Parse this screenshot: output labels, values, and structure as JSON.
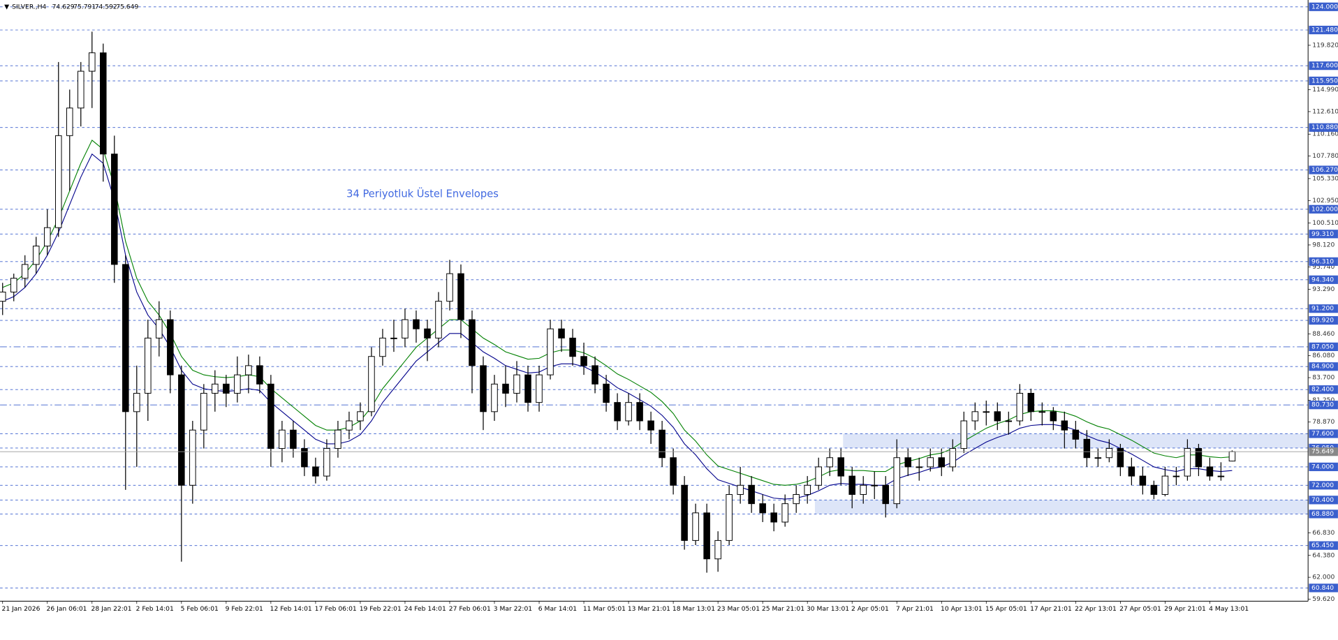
{
  "chart_data": {
    "type": "candlestick",
    "symbol": "SILVER.,H4",
    "annotation": "34 Periyotluk Üstel Envelopes",
    "categories": [
      "21 Jan 2026",
      null,
      null,
      null,
      "26 Jan 06:01",
      null,
      null,
      null,
      "28 Jan 22:01",
      null,
      null,
      null,
      "2 Feb 14:01",
      null,
      null,
      null,
      "5 Feb 06:01",
      null,
      null,
      null,
      "9 Feb 22:01",
      null,
      null,
      null,
      "12 Feb 14:01",
      null,
      null,
      null,
      "17 Feb 06:01",
      null,
      null,
      null,
      "19 Feb 22:01",
      null,
      null,
      null,
      "24 Feb 14:01",
      null,
      null,
      null,
      "27 Feb 06:01",
      null,
      null,
      null,
      "3 Mar 22:01",
      null,
      null,
      null,
      "6 Mar 14:01",
      null,
      null,
      null,
      "11 Mar 05:01",
      null,
      null,
      null,
      "13 Mar 21:01",
      null,
      null,
      null,
      "18 Mar 13:01",
      null,
      null,
      null,
      "23 Mar 05:01",
      null,
      null,
      null,
      "25 Mar 21:01",
      null,
      null,
      null,
      "30 Mar 13:01",
      null,
      null,
      null,
      "2 Apr 05:01",
      null,
      null,
      null,
      "7 Apr 21:01",
      null,
      null,
      null,
      "10 Apr 13:01",
      null,
      null,
      null,
      "15 Apr 05:01",
      null,
      null,
      null,
      "17 Apr 21:01",
      null,
      null,
      null,
      "22 Apr 13:01",
      null,
      null,
      null,
      "27 Apr 05:01",
      null,
      null,
      null,
      "29 Apr 21:01",
      null,
      null,
      null,
      "4 May 13:01",
      null,
      null
    ],
    "candles": {
      "open": [
        92,
        93,
        94.5,
        96,
        98,
        100,
        110,
        113,
        117,
        119,
        108,
        96,
        80,
        82,
        88,
        90,
        84,
        72,
        78,
        82,
        83,
        82,
        84,
        85,
        83,
        76,
        78,
        76,
        74,
        73,
        76,
        78,
        79,
        80,
        86,
        88,
        88,
        90,
        89,
        88,
        92,
        95,
        90,
        85,
        80,
        83,
        82,
        84,
        81,
        84,
        89,
        88,
        86,
        85,
        83,
        81,
        79,
        81,
        79,
        78,
        75,
        72,
        66,
        69,
        64,
        66,
        71,
        72,
        70,
        69,
        68,
        70,
        71,
        72,
        74,
        75,
        73,
        71,
        72,
        72,
        70,
        75,
        74,
        74,
        75,
        74,
        76,
        79,
        80,
        80,
        79,
        79,
        82,
        80,
        80,
        79,
        78,
        77,
        75,
        75,
        76,
        74,
        73,
        72,
        71,
        73,
        73,
        76,
        74,
        73,
        74.629
      ],
      "high": [
        94,
        95,
        97,
        99,
        102,
        118,
        115,
        118,
        121.3,
        120,
        110,
        97,
        85,
        90,
        92,
        91,
        85,
        79,
        83,
        84.5,
        84,
        86,
        86.2,
        86,
        84,
        79,
        79,
        77,
        75,
        77,
        79,
        80,
        81,
        87,
        89,
        90,
        91.2,
        91,
        90,
        93,
        96.5,
        96,
        91,
        86,
        84,
        85,
        85.5,
        85,
        85,
        90,
        90,
        89,
        87.5,
        86,
        84,
        82,
        82,
        82,
        80,
        79,
        76,
        73,
        70,
        70,
        67,
        72,
        74,
        73,
        71,
        70,
        71,
        72,
        73,
        75,
        76,
        76,
        74,
        73,
        73.5,
        73,
        77,
        76,
        75,
        76,
        76,
        77,
        80,
        81,
        81.2,
        81,
        80,
        83,
        82.5,
        81,
        80.5,
        80,
        79,
        78,
        76,
        77,
        76.5,
        75,
        74,
        72.5,
        74,
        74,
        77,
        76.5,
        75,
        74.5,
        75.791
      ],
      "low": [
        90.5,
        92,
        93.5,
        95,
        97,
        99,
        104,
        111,
        113,
        105,
        94,
        71.5,
        74,
        79,
        86,
        82,
        63.7,
        70,
        76,
        80,
        80.5,
        81,
        82,
        82,
        74,
        74.5,
        75,
        73,
        72.2,
        72.5,
        75,
        77,
        78,
        79.5,
        85,
        86.5,
        87,
        87.5,
        85.5,
        87,
        91,
        88,
        82,
        78,
        79,
        80.5,
        81,
        80,
        80,
        83.5,
        86.5,
        85,
        84,
        82,
        80,
        78,
        78.5,
        78,
        76.5,
        74,
        71,
        65,
        65.5,
        62.5,
        62.6,
        65.5,
        70,
        69,
        68,
        67,
        67.5,
        69,
        70,
        71.5,
        73,
        72,
        69.5,
        70,
        70.5,
        68.5,
        69.5,
        73,
        72.5,
        73.5,
        73,
        73.5,
        75.5,
        78,
        78.5,
        78,
        77.5,
        78.5,
        79,
        78.5,
        78,
        76,
        76,
        74,
        74,
        74.5,
        73,
        72,
        71,
        70.5,
        70.8,
        72,
        72.5,
        73,
        72.5,
        72.5,
        74.592
      ],
      "close": [
        93,
        94.5,
        96,
        98,
        100,
        110,
        113,
        117,
        119,
        108,
        96,
        80,
        82,
        88,
        90,
        84,
        72,
        78,
        82,
        83,
        82,
        84,
        85,
        83,
        76,
        78,
        76,
        74,
        73,
        76,
        78,
        79,
        80,
        86,
        88,
        88,
        90,
        89,
        88,
        92,
        95,
        90,
        85,
        80,
        83,
        82,
        84,
        81,
        84,
        89,
        88,
        86,
        85,
        83,
        81,
        79,
        81,
        79,
        78,
        75,
        72,
        66,
        69,
        64,
        66,
        71,
        72,
        70,
        69,
        68,
        70,
        71,
        72,
        74,
        75,
        73,
        71,
        72,
        72,
        70,
        75,
        74,
        74,
        75,
        74,
        76,
        79,
        80,
        80,
        79,
        79,
        82,
        80,
        80,
        79,
        78,
        77,
        75,
        75,
        76,
        74,
        73,
        72,
        71,
        73,
        73,
        76,
        74,
        73,
        73,
        75.649
      ]
    },
    "series": [
      {
        "color": "#008000",
        "values": [
          93.5,
          94,
          95,
          96.5,
          98.5,
          101,
          104,
          107,
          109.5,
          108.5,
          104.5,
          98.5,
          94.5,
          92,
          90.5,
          88.5,
          86,
          84.5,
          84,
          83.8,
          83.7,
          83.8,
          84,
          83.8,
          82.5,
          81.5,
          80.5,
          79.5,
          78.5,
          78,
          78,
          78.3,
          79,
          80.5,
          82.5,
          84,
          85.5,
          87,
          88,
          89,
          90,
          90,
          89,
          88,
          87.3,
          86.5,
          86.1,
          85.7,
          85.8,
          86.4,
          86.7,
          86.7,
          86.4,
          85.8,
          85,
          84.1,
          83.5,
          82.8,
          82.1,
          81.1,
          79.8,
          78,
          76.8,
          75.3,
          74.1,
          73.7,
          73.3,
          72.9,
          72.5,
          72.1,
          72,
          72.1,
          72.4,
          72.9,
          73.5,
          73.7,
          73.6,
          73.6,
          73.5,
          73.5,
          74.2,
          74.6,
          74.9,
          75.3,
          75.5,
          76,
          76.8,
          77.5,
          78.2,
          78.7,
          79.1,
          79.7,
          80,
          80.1,
          80.1,
          79.9,
          79.5,
          78.9,
          78.4,
          78.1,
          77.5,
          76.9,
          76.2,
          75.5,
          75.2,
          75,
          75.3,
          75.3,
          75.1,
          75,
          75.1
        ]
      },
      {
        "color": "#00008b",
        "values": [
          92,
          92.5,
          93.5,
          95,
          97,
          99.5,
          102.5,
          105.5,
          108,
          107,
          103,
          97,
          93,
          90.5,
          89,
          87,
          84.5,
          83,
          82.5,
          82.3,
          82.2,
          82.3,
          82.5,
          82.3,
          81,
          80,
          79,
          78,
          77,
          76.5,
          76.5,
          76.8,
          77.5,
          79,
          81,
          82.5,
          84,
          85.5,
          86.5,
          87.5,
          88.5,
          88.5,
          87.5,
          86.5,
          85.8,
          85,
          84.6,
          84.2,
          84.3,
          84.9,
          85.2,
          85.2,
          84.9,
          84.3,
          83.5,
          82.6,
          82,
          81.3,
          80.6,
          79.6,
          78.3,
          76.5,
          75.3,
          73.8,
          72.6,
          72.2,
          71.8,
          71.4,
          71,
          70.6,
          70.5,
          70.6,
          70.9,
          71.4,
          72,
          72.2,
          72.1,
          72.1,
          72,
          72,
          72.7,
          73.1,
          73.4,
          73.8,
          74,
          74.5,
          75.3,
          76,
          76.7,
          77.2,
          77.6,
          78.2,
          78.5,
          78.6,
          78.6,
          78.4,
          78,
          77.4,
          76.9,
          76.6,
          76,
          75.4,
          74.7,
          74,
          73.7,
          73.5,
          73.8,
          73.8,
          73.6,
          73.5,
          73.6
        ]
      }
    ],
    "ylim": [
      59.4,
      124
    ],
    "yticks": [
      {
        "value": 119.82,
        "label": "119.820"
      },
      {
        "value": 114.99,
        "label": "114.990"
      },
      {
        "value": 112.61,
        "label": "112.610"
      },
      {
        "value": 110.16,
        "label": "110.160"
      },
      {
        "value": 107.78,
        "label": "107.780"
      },
      {
        "value": 105.33,
        "label": "105.330"
      },
      {
        "value": 102.95,
        "label": "102.950"
      },
      {
        "value": 100.51,
        "label": "100.510"
      },
      {
        "value": 98.12,
        "label": "98.120"
      },
      {
        "value": 95.74,
        "label": "95.740"
      },
      {
        "value": 93.29,
        "label": "93.290"
      },
      {
        "value": 88.46,
        "label": "88.460"
      },
      {
        "value": 86.08,
        "label": "86.080"
      },
      {
        "value": 83.7,
        "label": "83.700"
      },
      {
        "value": 81.25,
        "label": "81.250"
      },
      {
        "value": 78.87,
        "label": "78.870"
      },
      {
        "value": 66.83,
        "label": "66.830"
      },
      {
        "value": 64.38,
        "label": "64.380"
      },
      {
        "value": 62,
        "label": "62.000"
      },
      {
        "value": 59.62,
        "label": "59.620"
      }
    ],
    "levels": [
      {
        "value": 124,
        "label": "124.000"
      },
      {
        "value": 121.48,
        "label": "121.480"
      },
      {
        "value": 117.6,
        "label": "117.600"
      },
      {
        "value": 115.95,
        "label": "115.950"
      },
      {
        "value": 110.88,
        "label": "110.880"
      },
      {
        "value": 106.27,
        "label": "106.270"
      },
      {
        "value": 102,
        "label": "102.000"
      },
      {
        "value": 99.31,
        "label": "99.310"
      },
      {
        "value": 96.31,
        "label": "96.310"
      },
      {
        "value": 94.34,
        "label": "94.340"
      },
      {
        "value": 91.2,
        "label": "91.200"
      },
      {
        "value": 89.92,
        "label": "89.920"
      },
      {
        "value": 87.05,
        "label": "87.050",
        "style": "dashdot"
      },
      {
        "value": 84.9,
        "label": "84.900"
      },
      {
        "value": 82.4,
        "label": "82.400"
      },
      {
        "value": 80.73,
        "label": "80.730",
        "style": "dashdot"
      },
      {
        "value": 77.6,
        "label": "77.600"
      },
      {
        "value": 76.05,
        "label": "76.050"
      },
      {
        "value": 74,
        "label": "74.000"
      },
      {
        "value": 72,
        "label": "72.000"
      },
      {
        "value": 70.4,
        "label": "70.400"
      },
      {
        "value": 68.88,
        "label": "68.880"
      },
      {
        "value": 65.45,
        "label": "65.450"
      },
      {
        "value": 60.84,
        "label": "60.840"
      }
    ],
    "zones": [
      {
        "low": 76.05,
        "high": 77.6
      },
      {
        "low": 68.88,
        "high": 70.4
      }
    ],
    "level_color": "#3a5fcd",
    "zone_color": "#dde5f8"
  }
}
